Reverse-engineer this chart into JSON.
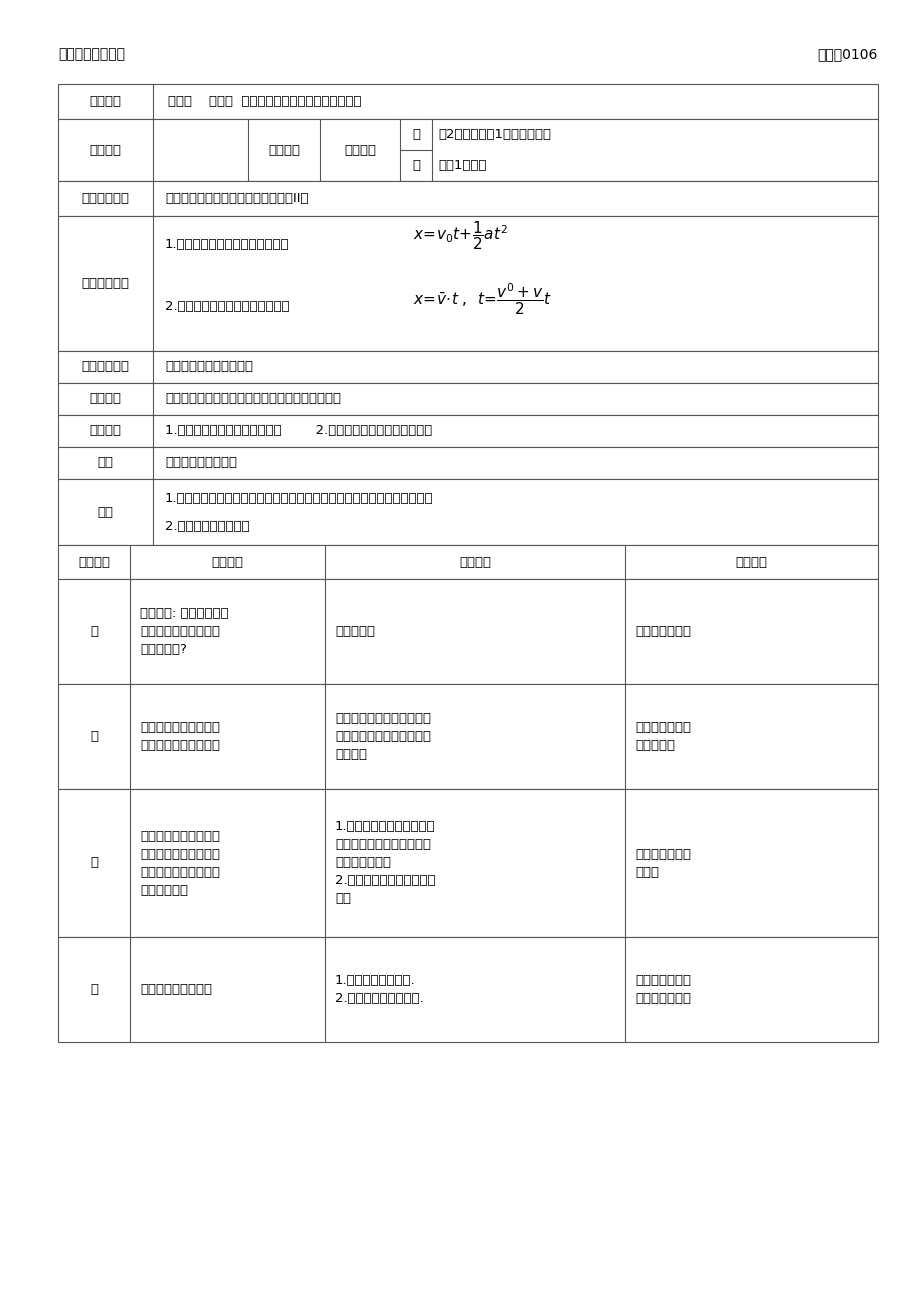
{
  "header_left": "高一物理主备教案",
  "header_right": "编号：0106",
  "bg_color": "#ffffff",
  "border_color": "#555555",
  "text_color": "#000000",
  "process_rows": [
    {
      "phase": "导",
      "teacher": "问题导入: 怎么求匀变速\n直线运动在某段时间内\n发生的位移?",
      "student": "聆听并思考",
      "design": "无限分割累加法"
    },
    {
      "phase": "思",
      "teacher": "指导学生根据导学提纲\n的问题流程看书自学。",
      "student": "根据导学提纲流程看书，并\n单独思考老师在流程中提出\n的问题。",
      "design": "培养学生带着问\n题有序看书"
    },
    {
      "phase": "议",
      "teacher": "指导各小组讨论提纲流\n程中的老师提出的供小\n组讨论的问题以及基础\n感知达标练习",
      "student": "1.各小组讨论老师在提纲流\n程中提出的小组讨论问题，\n达成小组共识。\n2.独立完成基础感知达标练\n习。",
      "design": "在讨论中探究物\n理方法"
    },
    {
      "phase": "展",
      "teacher": "安排各小组有序展示",
      "student": "1.分组展示讨论结果.\n2.各小组提出主要疑感.",
      "design": "培养学生表达和\n提出问题的能力"
    }
  ]
}
